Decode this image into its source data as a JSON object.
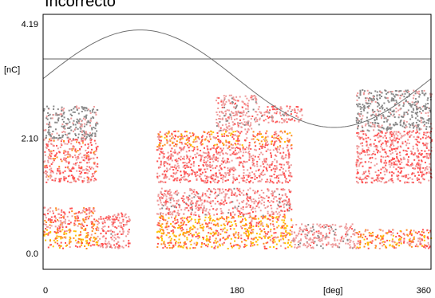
{
  "chart_data": {
    "type": "heatmap",
    "title": "Incorrecto",
    "xlabel": "[deg]",
    "ylabel": "[nC]",
    "xlim": [
      0,
      360
    ],
    "ylim": [
      0,
      4.19
    ],
    "x_ticks": [
      "0",
      "180",
      "360"
    ],
    "y_ticks": [
      "4.19",
      "2.10",
      "0.0"
    ],
    "grid": false,
    "threshold_line_y": 3.55,
    "reference_sine": {
      "period_deg": 360,
      "min": 2.3,
      "max": 4.08,
      "peak_phase_deg": 90
    },
    "colormap": [
      "#888888",
      "#ee9a9a",
      "#ff5050",
      "#ff8a1f",
      "#ffc000"
    ],
    "clusters": [
      {
        "x_range": [
          0,
          50
        ],
        "y_range": [
          0.1,
          0.45
        ],
        "intensity": 1.0
      },
      {
        "x_range": [
          0,
          50
        ],
        "y_range": [
          0.45,
          0.85
        ],
        "intensity": 0.7
      },
      {
        "x_range": [
          0,
          50
        ],
        "y_range": [
          1.3,
          2.1
        ],
        "intensity": 0.65
      },
      {
        "x_range": [
          0,
          50
        ],
        "y_range": [
          2.1,
          2.7
        ],
        "intensity": 0.25
      },
      {
        "x_range": [
          50,
          80
        ],
        "y_range": [
          0.1,
          0.75
        ],
        "intensity": 0.55
      },
      {
        "x_range": [
          105,
          230
        ],
        "y_range": [
          0.1,
          0.7
        ],
        "intensity": 0.95
      },
      {
        "x_range": [
          105,
          230
        ],
        "y_range": [
          0.7,
          1.2
        ],
        "intensity": 0.5
      },
      {
        "x_range": [
          105,
          230
        ],
        "y_range": [
          1.3,
          1.95
        ],
        "intensity": 0.6
      },
      {
        "x_range": [
          105,
          230
        ],
        "y_range": [
          1.95,
          2.25
        ],
        "intensity": 0.8
      },
      {
        "x_range": [
          160,
          200
        ],
        "y_range": [
          2.25,
          2.9
        ],
        "intensity": 0.45
      },
      {
        "x_range": [
          200,
          240
        ],
        "y_range": [
          2.4,
          2.7
        ],
        "intensity": 0.5
      },
      {
        "x_range": [
          230,
          290
        ],
        "y_range": [
          0.1,
          0.55
        ],
        "intensity": 0.45
      },
      {
        "x_range": [
          290,
          360
        ],
        "y_range": [
          0.1,
          0.45
        ],
        "intensity": 0.85
      },
      {
        "x_range": [
          290,
          360
        ],
        "y_range": [
          1.3,
          2.25
        ],
        "intensity": 0.6
      },
      {
        "x_range": [
          290,
          360
        ],
        "y_range": [
          2.25,
          3.0
        ],
        "intensity": 0.25
      }
    ]
  }
}
